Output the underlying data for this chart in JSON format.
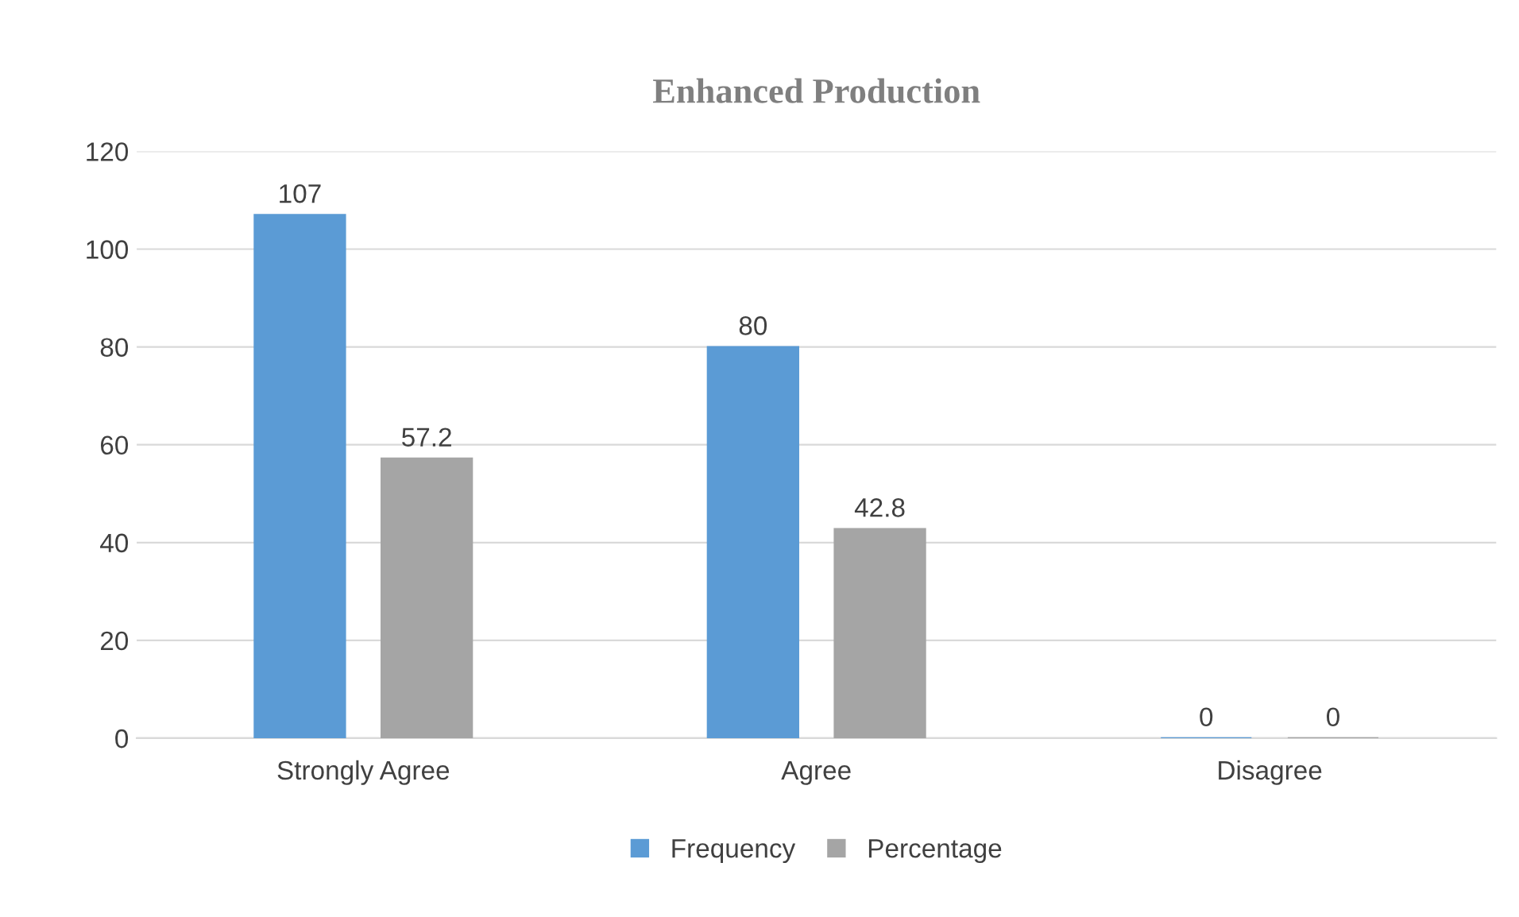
{
  "chart_data": {
    "type": "bar",
    "title": "Enhanced Production",
    "categories": [
      "Strongly Agree",
      "Agree",
      "Disagree"
    ],
    "series": [
      {
        "name": "Frequency",
        "color": "#5b9bd5",
        "values": [
          107,
          80,
          0
        ]
      },
      {
        "name": "Percentage",
        "color": "#a5a5a5",
        "values": [
          57.2,
          42.8,
          0
        ]
      }
    ],
    "ylim": [
      0,
      120
    ],
    "yticks": [
      0,
      20,
      40,
      60,
      80,
      100,
      120
    ],
    "grid": "y",
    "legend": "bottom",
    "data_labels": true
  }
}
